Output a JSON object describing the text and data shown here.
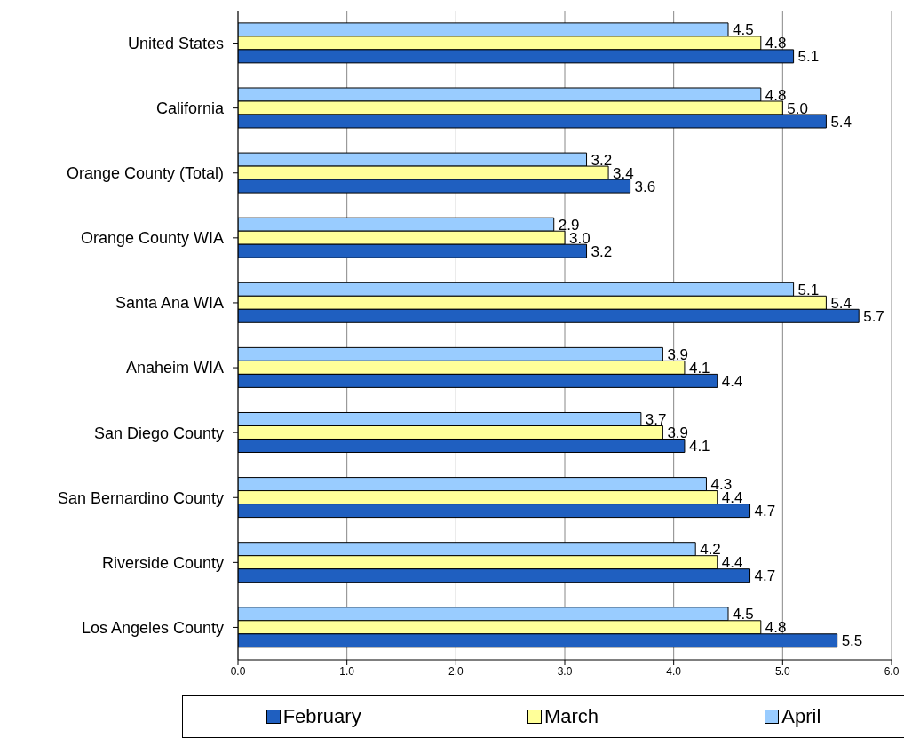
{
  "chart_data": {
    "type": "bar",
    "orientation": "horizontal",
    "categories": [
      "United States",
      "California",
      "Orange County (Total)",
      "Orange County WIA",
      "Santa Ana WIA",
      "Anaheim WIA",
      "San Diego County",
      "San Bernardino County",
      "Riverside County",
      "Los Angeles County"
    ],
    "series": [
      {
        "name": "February",
        "color": "#1f5fc0",
        "values": [
          5.1,
          5.4,
          3.6,
          3.2,
          5.7,
          4.4,
          4.1,
          4.7,
          4.7,
          5.5
        ],
        "value_labels": [
          "5.1",
          "5.4",
          "3.6",
          "3.2",
          "5.7",
          "4.4",
          "4.1",
          "4.7",
          "4.7",
          "5.5"
        ]
      },
      {
        "name": "March",
        "color": "#ffff99",
        "values": [
          4.8,
          5.0,
          3.4,
          3.0,
          5.4,
          4.1,
          3.9,
          4.4,
          4.4,
          4.8
        ],
        "value_labels": [
          "4.8",
          "5.0",
          "3.4",
          "3.0",
          "5.4",
          "4.1",
          "3.9",
          "4.4",
          "4.4",
          "4.8"
        ]
      },
      {
        "name": "April",
        "color": "#99ccff",
        "values": [
          4.5,
          4.8,
          3.2,
          2.9,
          5.1,
          3.9,
          3.7,
          4.3,
          4.2,
          4.5
        ],
        "value_labels": [
          "4.5",
          "4.8",
          "3.2",
          "2.9",
          "5.1",
          "3.9",
          "3.7",
          "4.3",
          "4.2",
          "4.5"
        ]
      }
    ],
    "xlim": [
      0,
      6
    ],
    "xticks": [
      {
        "value": 0,
        "label": "0.0"
      },
      {
        "value": 1,
        "label": "1.0"
      },
      {
        "value": 2,
        "label": "2.0"
      },
      {
        "value": 3,
        "label": "3.0"
      },
      {
        "value": 4,
        "label": "4.0"
      },
      {
        "value": 5,
        "label": "5.0"
      },
      {
        "value": 6,
        "label": "6.0"
      }
    ],
    "grid": "x",
    "legend": "bottom"
  }
}
